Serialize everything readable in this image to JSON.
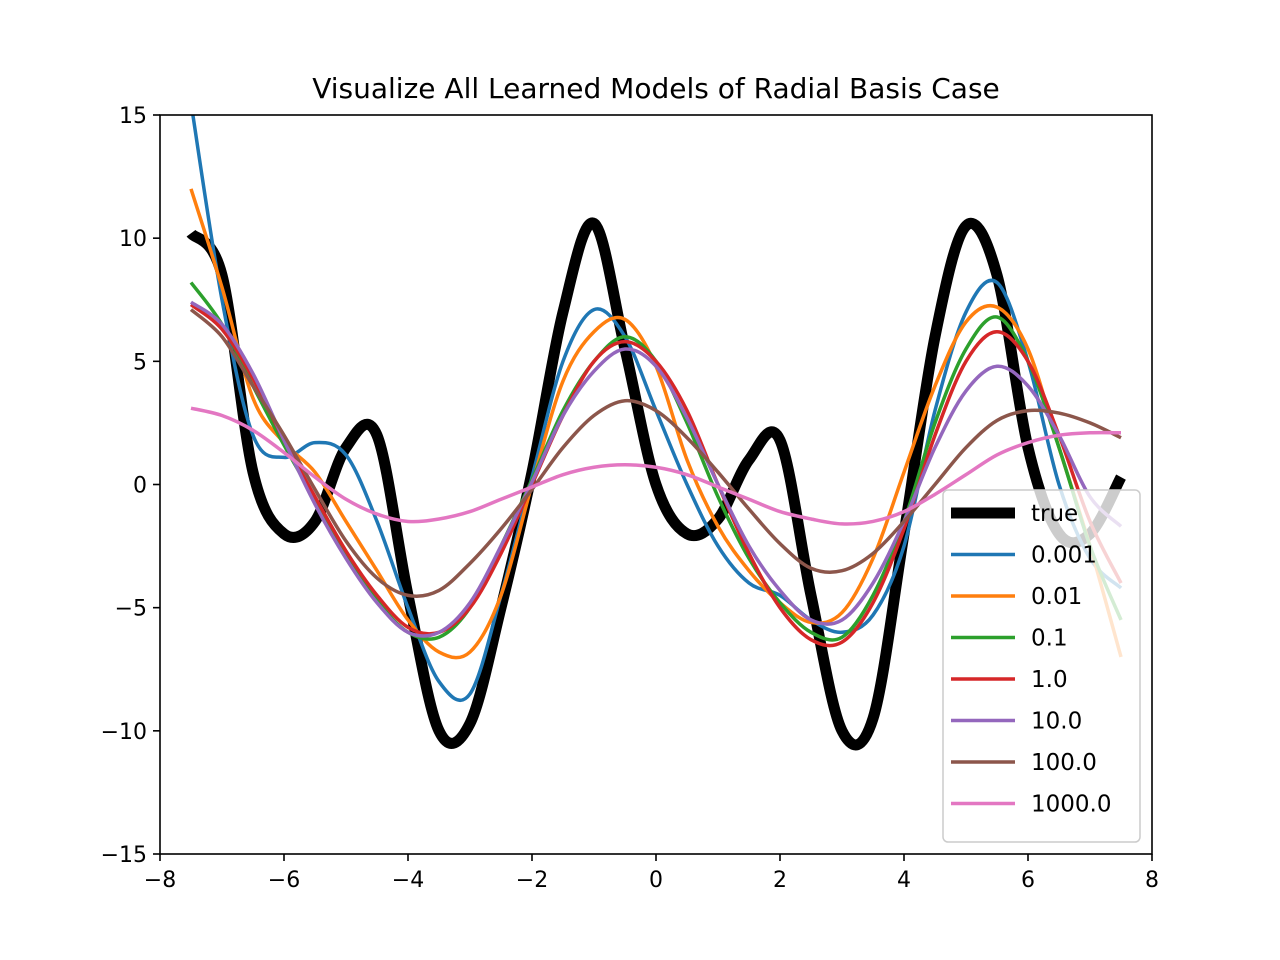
{
  "chart_data": {
    "type": "line",
    "title": "Visualize All Learned Models of Radial Basis Case",
    "xlabel": "",
    "ylabel": "",
    "xlim": [
      -8,
      8
    ],
    "ylim": [
      -15,
      15
    ],
    "x_ticks": [
      -8,
      -6,
      -4,
      -2,
      0,
      2,
      4,
      6,
      8
    ],
    "y_ticks": [
      -15,
      -10,
      -5,
      0,
      5,
      10,
      15
    ],
    "x_tick_labels": [
      "−8",
      "−6",
      "−4",
      "−2",
      "0",
      "2",
      "4",
      "6",
      "8"
    ],
    "y_tick_labels": [
      "−15",
      "−10",
      "−5",
      "0",
      "5",
      "10",
      "15"
    ],
    "grid": false,
    "legend_position": "lower-right",
    "x": [
      -7.5,
      -7.0,
      -6.5,
      -6.0,
      -5.5,
      -5.0,
      -4.5,
      -4.0,
      -3.5,
      -3.0,
      -2.5,
      -2.0,
      -1.5,
      -1.0,
      -0.5,
      0.0,
      0.5,
      1.0,
      1.5,
      2.0,
      2.5,
      3.0,
      3.5,
      4.0,
      4.5,
      5.0,
      5.5,
      6.0,
      6.5,
      7.0,
      7.5
    ],
    "series": [
      {
        "name": "true",
        "color": "#000000",
        "width": 11,
        "values": [
          10.2,
          8.5,
          0.5,
          -2.0,
          -1.5,
          1.5,
          2.0,
          -4.5,
          -10.0,
          -9.7,
          -5.0,
          0.5,
          7.0,
          10.6,
          5.5,
          0.0,
          -2.0,
          -1.4,
          1.0,
          1.8,
          -4.5,
          -10.0,
          -9.5,
          -2.0,
          6.0,
          10.5,
          8.5,
          1.5,
          -2.0,
          -2.0,
          0.3
        ]
      },
      {
        "name": "0.001",
        "color": "#1f77b4",
        "width": 3.5,
        "values": [
          15.5,
          7.5,
          2.0,
          1.1,
          1.7,
          1.2,
          -1.5,
          -5.0,
          -8.0,
          -8.5,
          -4.5,
          0.3,
          5.0,
          7.1,
          6.0,
          3.0,
          0.0,
          -2.5,
          -4.0,
          -4.5,
          -5.5,
          -6.0,
          -5.3,
          -2.5,
          3.0,
          7.0,
          8.2,
          5.0,
          0.0,
          -3.0,
          -4.2
        ]
      },
      {
        "name": "0.01",
        "color": "#ff7f0e",
        "width": 3.5,
        "values": [
          12.0,
          8.0,
          3.5,
          1.7,
          0.5,
          -1.5,
          -3.5,
          -5.5,
          -6.8,
          -6.8,
          -4.5,
          0.0,
          4.2,
          6.2,
          6.7,
          4.8,
          1.0,
          -1.7,
          -3.5,
          -4.8,
          -5.6,
          -5.2,
          -3.0,
          0.5,
          4.0,
          6.6,
          7.2,
          5.5,
          1.5,
          -2.5,
          -7.0
        ]
      },
      {
        "name": "0.1",
        "color": "#2ca02c",
        "width": 3.5,
        "values": [
          8.2,
          6.5,
          4.0,
          1.6,
          -0.6,
          -2.8,
          -4.7,
          -6.0,
          -6.2,
          -5.0,
          -2.5,
          0.2,
          3.0,
          5.0,
          6.0,
          5.0,
          2.5,
          -0.5,
          -3.0,
          -4.8,
          -6.0,
          -6.2,
          -4.5,
          -1.5,
          2.5,
          5.5,
          6.8,
          5.0,
          1.5,
          -2.5,
          -5.5
        ]
      },
      {
        "name": "1.0",
        "color": "#d62728",
        "width": 3.5,
        "values": [
          7.3,
          6.3,
          4.3,
          1.8,
          -0.5,
          -2.7,
          -4.5,
          -5.8,
          -6.0,
          -5.0,
          -2.8,
          0.0,
          2.8,
          5.0,
          5.8,
          5.0,
          3.0,
          0.0,
          -2.8,
          -5.0,
          -6.3,
          -6.4,
          -4.8,
          -1.8,
          2.0,
          5.0,
          6.2,
          5.0,
          2.0,
          -1.5,
          -4.0
        ]
      },
      {
        "name": "10.0",
        "color": "#9467bd",
        "width": 3.5,
        "values": [
          7.4,
          6.5,
          4.5,
          1.8,
          -0.8,
          -3.0,
          -4.8,
          -6.0,
          -6.0,
          -4.8,
          -2.5,
          0.1,
          2.8,
          4.6,
          5.5,
          4.8,
          2.7,
          0.0,
          -2.5,
          -4.3,
          -5.5,
          -5.5,
          -4.0,
          -1.5,
          1.5,
          3.8,
          4.8,
          4.0,
          2.0,
          -0.5,
          -1.7
        ]
      },
      {
        "name": "100.0",
        "color": "#8c564b",
        "width": 3.5,
        "values": [
          7.1,
          6.0,
          4.0,
          2.0,
          -0.2,
          -2.3,
          -3.8,
          -4.5,
          -4.3,
          -3.2,
          -1.8,
          -0.2,
          1.5,
          2.8,
          3.4,
          3.0,
          1.9,
          0.5,
          -1.0,
          -2.4,
          -3.4,
          -3.5,
          -2.8,
          -1.5,
          0.0,
          1.5,
          2.6,
          3.0,
          2.9,
          2.5,
          1.9
        ]
      },
      {
        "name": "1000.0",
        "color": "#e377c2",
        "width": 3.5,
        "values": [
          3.1,
          2.8,
          2.2,
          1.3,
          0.3,
          -0.6,
          -1.2,
          -1.5,
          -1.4,
          -1.1,
          -0.6,
          -0.1,
          0.4,
          0.7,
          0.8,
          0.7,
          0.4,
          -0.1,
          -0.6,
          -1.1,
          -1.4,
          -1.6,
          -1.5,
          -1.1,
          -0.4,
          0.4,
          1.2,
          1.7,
          2.0,
          2.1,
          2.1
        ]
      }
    ]
  }
}
